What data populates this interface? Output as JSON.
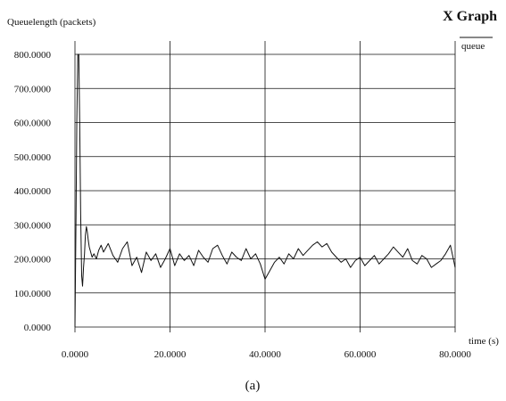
{
  "chart_data": {
    "type": "line",
    "title": "X Graph",
    "ylabel": "Queuelength (packets)",
    "xlabel": "time (s)",
    "caption": "(a)",
    "legend": {
      "entries": [
        "queue"
      ],
      "placement": "top-right"
    },
    "xlim": [
      0,
      80
    ],
    "ylim": [
      0,
      800
    ],
    "grid": true,
    "x_ticks": [
      "0.0000",
      "20.0000",
      "40.0000",
      "60.0000",
      "80.0000"
    ],
    "y_ticks": [
      "0.0000",
      "100.0000",
      "200.0000",
      "300.0000",
      "400.0000",
      "500.0000",
      "600.0000",
      "700.0000",
      "800.0000"
    ],
    "series": [
      {
        "name": "queue",
        "color": "#111111",
        "x": [
          0.0,
          0.2,
          0.4,
          0.6,
          0.8,
          1.0,
          1.2,
          1.4,
          1.6,
          1.8,
          2.0,
          2.2,
          2.4,
          2.6,
          2.8,
          3.0,
          3.3,
          3.6,
          4.0,
          4.5,
          5.0,
          5.5,
          6.0,
          7.0,
          8.0,
          9.0,
          10.0,
          11.0,
          12.0,
          13.0,
          14.0,
          15.0,
          16.0,
          17.0,
          18.0,
          19.0,
          20.0,
          21.0,
          22.0,
          23.0,
          24.0,
          25.0,
          26.0,
          27.0,
          28.0,
          29.0,
          30.0,
          31.0,
          32.0,
          33.0,
          34.0,
          35.0,
          36.0,
          37.0,
          38.0,
          39.0,
          40.0,
          41.0,
          42.0,
          43.0,
          44.0,
          45.0,
          46.0,
          47.0,
          48.0,
          49.0,
          50.0,
          51.0,
          52.0,
          53.0,
          54.0,
          55.0,
          56.0,
          57.0,
          58.0,
          59.0,
          60.0,
          61.0,
          62.0,
          63.0,
          64.0,
          65.0,
          66.0,
          67.0,
          68.0,
          69.0,
          70.0,
          71.0,
          72.0,
          73.0,
          74.0,
          75.0,
          76.0,
          77.0,
          78.0,
          79.0,
          80.0
        ],
        "y": [
          0,
          300,
          610,
          800,
          800,
          600,
          330,
          150,
          120,
          175,
          215,
          270,
          295,
          280,
          255,
          235,
          220,
          205,
          215,
          200,
          225,
          240,
          220,
          245,
          210,
          190,
          230,
          250,
          180,
          205,
          160,
          220,
          195,
          215,
          175,
          200,
          230,
          180,
          215,
          195,
          210,
          180,
          225,
          205,
          190,
          230,
          240,
          210,
          185,
          220,
          205,
          195,
          230,
          200,
          215,
          185,
          140,
          165,
          190,
          205,
          185,
          215,
          200,
          230,
          210,
          225,
          240,
          250,
          235,
          245,
          220,
          205,
          190,
          200,
          175,
          195,
          205,
          180,
          195,
          210,
          185,
          200,
          215,
          235,
          220,
          205,
          230,
          195,
          185,
          210,
          200,
          175,
          185,
          195,
          215,
          240,
          175
        ]
      }
    ]
  }
}
